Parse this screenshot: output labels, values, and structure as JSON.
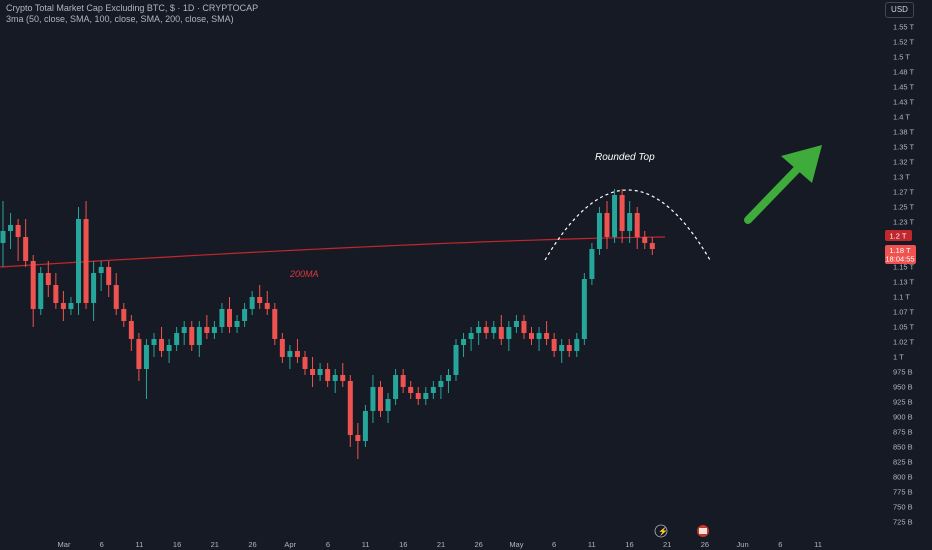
{
  "legend": {
    "symbol_line": "Crypto Total Market Cap Excluding BTC, $ · 1D · CRYPTOCAP",
    "indicator_line": "3ma (50, close, SMA, 100, close, SMA, 200, close, SMA)"
  },
  "currency_button": "USD",
  "annotations": {
    "rounded_top": "Rounded Top",
    "ma_label": "200MA"
  },
  "price_tags": {
    "ma": "1.2 T",
    "last": "1.18 T",
    "countdown": "18:04:55"
  },
  "colors": {
    "background": "#161a25",
    "up": "#26a69a",
    "down": "#ef5350",
    "ma": "#c2272d",
    "arrow": "#3eab3a",
    "annotation": "#ffffff"
  },
  "chart_data": {
    "type": "candlestick",
    "y_ticks": [
      "1.55 T",
      "1.52 T",
      "1.5 T",
      "1.48 T",
      "1.45 T",
      "1.43 T",
      "1.4 T",
      "1.38 T",
      "1.35 T",
      "1.32 T",
      "1.3 T",
      "1.27 T",
      "1.25 T",
      "1.23 T",
      "1.2 T",
      "1.18 T",
      "1.15 T",
      "1.13 T",
      "1.1 T",
      "1.07 T",
      "1.05 T",
      "1.02 T",
      "1 T",
      "975 B",
      "950 B",
      "925 B",
      "900 B",
      "875 B",
      "850 B",
      "825 B",
      "800 B",
      "775 B",
      "750 B",
      "725 B"
    ],
    "ylim": [
      710,
      1570
    ],
    "x_ticks": [
      "Mar",
      "6",
      "11",
      "16",
      "21",
      "26",
      "Apr",
      "6",
      "11",
      "16",
      "21",
      "26",
      "May",
      "6",
      "11",
      "16",
      "21",
      "26",
      "Jun",
      "6",
      "11"
    ],
    "ohlc": [
      [
        1190,
        1260,
        1150,
        1210
      ],
      [
        1210,
        1240,
        1180,
        1220
      ],
      [
        1220,
        1230,
        1160,
        1200
      ],
      [
        1200,
        1230,
        1150,
        1160
      ],
      [
        1160,
        1170,
        1050,
        1080
      ],
      [
        1080,
        1150,
        1070,
        1140
      ],
      [
        1140,
        1160,
        1100,
        1120
      ],
      [
        1120,
        1140,
        1080,
        1090
      ],
      [
        1090,
        1110,
        1060,
        1080
      ],
      [
        1080,
        1100,
        1070,
        1090
      ],
      [
        1090,
        1250,
        1070,
        1230
      ],
      [
        1230,
        1260,
        1080,
        1090
      ],
      [
        1090,
        1160,
        1060,
        1140
      ],
      [
        1140,
        1160,
        1110,
        1150
      ],
      [
        1150,
        1160,
        1100,
        1120
      ],
      [
        1120,
        1140,
        1070,
        1080
      ],
      [
        1080,
        1090,
        1050,
        1060
      ],
      [
        1060,
        1070,
        1010,
        1030
      ],
      [
        1030,
        1040,
        960,
        980
      ],
      [
        980,
        1030,
        930,
        1020
      ],
      [
        1020,
        1040,
        1000,
        1030
      ],
      [
        1030,
        1050,
        1000,
        1010
      ],
      [
        1010,
        1030,
        990,
        1020
      ],
      [
        1020,
        1050,
        1010,
        1040
      ],
      [
        1040,
        1060,
        1020,
        1050
      ],
      [
        1050,
        1060,
        1010,
        1020
      ],
      [
        1020,
        1060,
        1000,
        1050
      ],
      [
        1050,
        1070,
        1030,
        1040
      ],
      [
        1040,
        1060,
        1030,
        1050
      ],
      [
        1050,
        1090,
        1040,
        1080
      ],
      [
        1080,
        1100,
        1040,
        1050
      ],
      [
        1050,
        1070,
        1040,
        1060
      ],
      [
        1060,
        1090,
        1050,
        1080
      ],
      [
        1080,
        1110,
        1070,
        1100
      ],
      [
        1100,
        1120,
        1080,
        1090
      ],
      [
        1090,
        1110,
        1070,
        1080
      ],
      [
        1080,
        1090,
        1020,
        1030
      ],
      [
        1030,
        1040,
        990,
        1000
      ],
      [
        1000,
        1020,
        980,
        1010
      ],
      [
        1010,
        1030,
        990,
        1000
      ],
      [
        1000,
        1010,
        970,
        980
      ],
      [
        980,
        1000,
        950,
        970
      ],
      [
        970,
        990,
        960,
        980
      ],
      [
        980,
        990,
        950,
        960
      ],
      [
        960,
        980,
        940,
        970
      ],
      [
        970,
        990,
        950,
        960
      ],
      [
        960,
        970,
        850,
        870
      ],
      [
        870,
        890,
        830,
        860
      ],
      [
        860,
        920,
        850,
        910
      ],
      [
        910,
        970,
        890,
        950
      ],
      [
        950,
        960,
        900,
        910
      ],
      [
        910,
        940,
        890,
        930
      ],
      [
        930,
        980,
        920,
        970
      ],
      [
        970,
        980,
        940,
        950
      ],
      [
        950,
        960,
        930,
        940
      ],
      [
        940,
        950,
        920,
        930
      ],
      [
        930,
        950,
        920,
        940
      ],
      [
        940,
        960,
        930,
        950
      ],
      [
        950,
        970,
        930,
        960
      ],
      [
        960,
        980,
        940,
        970
      ],
      [
        970,
        1030,
        960,
        1020
      ],
      [
        1020,
        1040,
        1000,
        1030
      ],
      [
        1030,
        1050,
        1010,
        1040
      ],
      [
        1040,
        1060,
        1020,
        1050
      ],
      [
        1050,
        1060,
        1030,
        1040
      ],
      [
        1040,
        1060,
        1030,
        1050
      ],
      [
        1050,
        1070,
        1020,
        1030
      ],
      [
        1030,
        1060,
        1010,
        1050
      ],
      [
        1050,
        1070,
        1040,
        1060
      ],
      [
        1060,
        1070,
        1030,
        1040
      ],
      [
        1040,
        1050,
        1020,
        1030
      ],
      [
        1030,
        1050,
        1010,
        1040
      ],
      [
        1040,
        1060,
        1020,
        1030
      ],
      [
        1030,
        1040,
        1000,
        1010
      ],
      [
        1010,
        1030,
        990,
        1020
      ],
      [
        1020,
        1030,
        1000,
        1010
      ],
      [
        1010,
        1040,
        1000,
        1030
      ],
      [
        1030,
        1140,
        1020,
        1130
      ],
      [
        1130,
        1190,
        1120,
        1180
      ],
      [
        1180,
        1250,
        1170,
        1240
      ],
      [
        1240,
        1260,
        1180,
        1200
      ],
      [
        1200,
        1280,
        1190,
        1270
      ],
      [
        1270,
        1280,
        1190,
        1210
      ],
      [
        1210,
        1260,
        1190,
        1240
      ],
      [
        1240,
        1250,
        1180,
        1200
      ],
      [
        1200,
        1210,
        1180,
        1190
      ],
      [
        1190,
        1200,
        1170,
        1180
      ]
    ],
    "sma200": {
      "name": "200MA",
      "start": 1150,
      "end": 1200
    }
  }
}
